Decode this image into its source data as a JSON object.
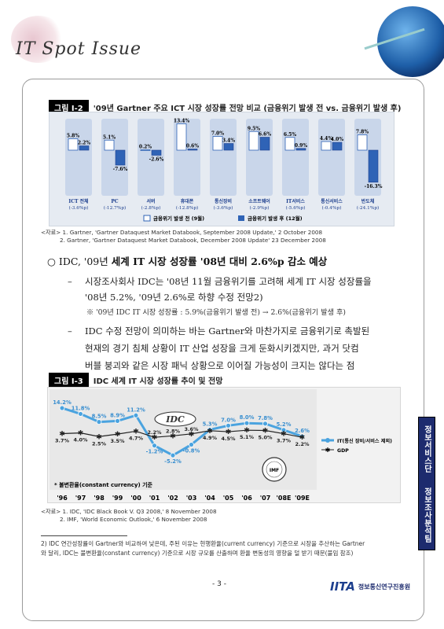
{
  "header": {
    "logo_text": "IT Spot Issue"
  },
  "figure1": {
    "tag": "그림 Ⅰ-2",
    "title": "'09년 Gartner 주요 ICT 시장 성장률 전망 비교 (금융위기 발생 전 vs. 금융위기 발생 후)",
    "legend_before": "금융위기 발생 전 (9월)",
    "legend_after": "금융위기 발생 후 (12월)",
    "categories": [
      "ICT 전체",
      "PC",
      "서버",
      "휴대폰",
      "통신장비",
      "소프트웨어",
      "IT서비스",
      "통신서비스",
      "반도체"
    ],
    "changes": [
      "(-3.6%p)",
      "(-12.7%p)",
      "(-2.8%p)",
      "(-12.8%p)",
      "(-3.6%p)",
      "(-2.9%p)",
      "(-5.6%p)",
      "(-0.4%p)",
      "(-24.1%p)"
    ],
    "before": [
      5.8,
      5.1,
      0.2,
      13.4,
      7.0,
      9.5,
      6.5,
      4.4,
      7.8
    ],
    "after": [
      2.2,
      -7.6,
      -2.6,
      0.6,
      3.4,
      6.6,
      0.9,
      4.0,
      -16.3
    ],
    "before_labels": [
      "5.8%",
      "5.1%",
      "0.2%",
      "13.4%",
      "7.0%",
      "9.5%",
      "6.5%",
      "4.4%",
      "7.8%"
    ],
    "after_labels": [
      "2.2%",
      "-7.6%",
      "-2.6%",
      "0.6%",
      "3.4%",
      "6.6%",
      "0.9%",
      "4.0%",
      "-16.3%"
    ],
    "colors": {
      "before": "#ffffff",
      "after": "#2f63b6",
      "panel": "#c9d6ea"
    }
  },
  "note1": {
    "line1": "<자료> 1. Gartner, 'Gartner Dataquest Market Databook, September 2008 Update,' 2 October 2008",
    "line2": "2. Gartner, 'Gartner Dataquest Market Databook, December 2008 Update' 23 December 2008"
  },
  "headline": {
    "prefix": "○ IDC, '09년 ",
    "bold": "세계 IT 시장 성장률",
    "suffix": " '08년 대비 2.6%p 감소 예상"
  },
  "bullet1": {
    "dash": "–",
    "line1": "시장조사회사 IDC는 '08년 11월 금융위기를 고려해 세계 IT 시장 성장률을",
    "line2": "'08년 5.2%, '09년 2.6%로 하향 수정 전망2)"
  },
  "sub": "※ '09년 IDC IT 시장 성장률 : 5.9%(금융위기 발생 전) → 2.6%(금융위기 발생 후)",
  "bullet2": {
    "dash": "–",
    "line1": "IDC 수정 전망이 의미하는 바는 Gartner와 마찬가지로 금융위기로 촉발된",
    "line2": "현재의 경기 침체 상황이 IT 산업 성장을 크게 둔화시키겠지만, 과거 닷컴",
    "line3": "버블 붕괴와 같은 시장 패닉 상황으로 이어질 가능성이 크지는 않다는 점"
  },
  "figure2": {
    "tag": "그림 Ⅰ-3",
    "title": "IDC 세계 IT 시장 성장률 추이 및 전망",
    "years": [
      "'96",
      "'97",
      "'98",
      "'99",
      "'00",
      "'01",
      "'02",
      "'03",
      "'04",
      "'05",
      "'06",
      "'07",
      "'08E",
      "'09E"
    ],
    "it": [
      14.2,
      11.8,
      8.5,
      8.9,
      11.2,
      -1.2,
      -5.2,
      -0.8,
      5.3,
      7.0,
      8.0,
      7.8,
      5.2,
      2.6
    ],
    "gdp": [
      3.7,
      4.0,
      2.5,
      3.5,
      4.7,
      2.2,
      2.8,
      3.6,
      4.9,
      4.5,
      5.1,
      5.0,
      3.7,
      2.2
    ],
    "it_labels": [
      "14.2%",
      "11.8%",
      "8.5%",
      "8.9%",
      "11.2%",
      "-1.2%",
      "-5.2%",
      "-0.8%",
      "5.3%",
      "7.0%",
      "8.0%",
      "7.8%",
      "5.2%",
      "2.6%"
    ],
    "gdp_labels": [
      "3.7%",
      "4.0%",
      "2.5%",
      "3.5%",
      "4.7%",
      "2.2%",
      "2.8%",
      "3.6%",
      "4.9%",
      "4.5%",
      "5.1%",
      "5.0%",
      "3.7%",
      "2.2%"
    ],
    "legend_it": "IT(통신 장비/서비스 제외)",
    "legend_gdp": "GDP",
    "note": "* 불변환율(constant currency) 기준",
    "idc_logo": "IDC",
    "imf_seal": "IMF",
    "colors": {
      "it": "#4aa3df",
      "gdp": "#222222"
    }
  },
  "note2": {
    "line1": "<자료> 1. IDC, 'IDC Black Book V. Q3 2008,' 8 November 2008",
    "line2": "2. IMF, 'World Economic Outlook,' 6 November 2008"
  },
  "side": {
    "label1": "정보서비스단",
    "label2": "정보조사분석팀"
  },
  "footnote": {
    "line1": "2) IDC 연간성장률이 Gartner와 비교하여 낮은데, 주된 이유는 현행환율(current currency) 기준으로 시장을 추산하는 Gartner",
    "line2": "와 달리, IDC는 불변환율(constant currency) 기준으로 시장 규모를 산출하며 환율 변동성의 영향을 덜 받기 때문(불임 참조)"
  },
  "page": {
    "number": "- 3 -"
  },
  "org": {
    "logo": "IITA",
    "name": "정보통신연구진흥원"
  }
}
